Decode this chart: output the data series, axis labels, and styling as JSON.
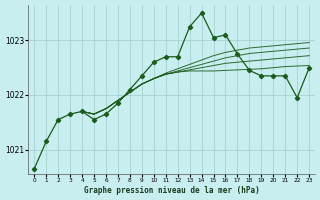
{
  "title": "Graphe pression niveau de la mer (hPa)",
  "background_color": "#c8eef0",
  "grid_color": "#a0cccc",
  "line_color": "#1a5c1a",
  "xlim": [
    -0.5,
    23.5
  ],
  "ylim": [
    1020.55,
    1023.65
  ],
  "yticks": [
    1021,
    1022,
    1023
  ],
  "xticks": [
    0,
    1,
    2,
    3,
    4,
    5,
    6,
    7,
    8,
    9,
    10,
    11,
    12,
    13,
    14,
    15,
    16,
    17,
    18,
    19,
    20,
    21,
    22,
    23
  ],
  "hours": [
    0,
    1,
    2,
    3,
    4,
    5,
    6,
    7,
    8,
    9,
    10,
    11,
    12,
    13,
    14,
    15,
    16,
    17,
    18,
    19,
    20,
    21,
    22,
    23
  ],
  "pressure_main": [
    1020.65,
    1021.15,
    1021.55,
    1021.65,
    1021.7,
    1021.55,
    1021.65,
    1021.85,
    1022.1,
    1022.35,
    1022.6,
    1022.7,
    1022.7,
    1023.25,
    1023.5,
    1023.05,
    1023.1,
    1022.75,
    1022.45,
    1022.35,
    1022.35,
    1022.35,
    1021.95,
    1022.5
  ],
  "band_start_hour": 4,
  "band_lines": [
    [
      1021.7,
      1021.65,
      1021.75,
      1021.9,
      1022.05,
      1022.2,
      1022.3,
      1022.38,
      1022.42,
      1022.44,
      1022.44,
      1022.44,
      1022.45,
      1022.46,
      1022.47,
      1022.48,
      1022.5,
      1022.52,
      1022.53,
      1022.54
    ],
    [
      1021.7,
      1021.65,
      1021.75,
      1021.9,
      1022.05,
      1022.2,
      1022.3,
      1022.38,
      1022.42,
      1022.46,
      1022.5,
      1022.54,
      1022.58,
      1022.6,
      1022.62,
      1022.64,
      1022.66,
      1022.68,
      1022.7,
      1022.72
    ],
    [
      1021.7,
      1021.65,
      1021.75,
      1021.9,
      1022.05,
      1022.2,
      1022.3,
      1022.38,
      1022.44,
      1022.5,
      1022.56,
      1022.62,
      1022.68,
      1022.72,
      1022.76,
      1022.78,
      1022.8,
      1022.82,
      1022.84,
      1022.86
    ],
    [
      1021.7,
      1021.65,
      1021.75,
      1021.9,
      1022.05,
      1022.2,
      1022.3,
      1022.4,
      1022.48,
      1022.56,
      1022.64,
      1022.72,
      1022.78,
      1022.82,
      1022.86,
      1022.88,
      1022.9,
      1022.92,
      1022.94,
      1022.96
    ]
  ],
  "band_hours": [
    4,
    5,
    6,
    7,
    8,
    9,
    10,
    11,
    12,
    13,
    14,
    15,
    16,
    17,
    18,
    19,
    20,
    21,
    22,
    23
  ]
}
